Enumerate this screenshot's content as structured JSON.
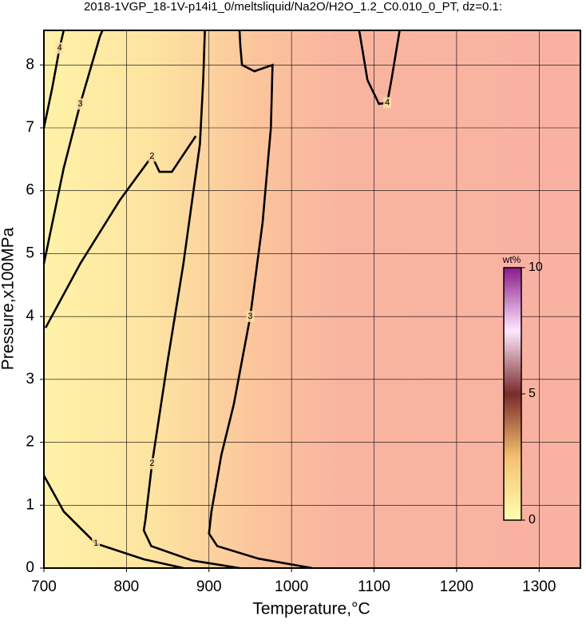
{
  "chart_data": {
    "type": "contour",
    "title": "2018-1VGP_18-1V-p14i1_0/meltsliquid/Na2O/H2O_1.2_C0.010_0_PT, dz=0.1:",
    "x_label": "Temperature,°C",
    "y_label": "Pressure,x100MPa",
    "xlim": [
      700,
      1350
    ],
    "xticks": [
      700,
      800,
      900,
      1000,
      1100,
      1200,
      1300
    ],
    "ylim": [
      0,
      8.55
    ],
    "yticks": [
      0,
      1,
      2,
      3,
      4,
      5,
      6,
      7,
      8
    ],
    "grid": true,
    "contours": [
      {
        "level": 3,
        "x": [
          1025,
          960,
          910,
          900,
          903,
          915,
          930,
          950,
          965,
          975,
          977,
          955,
          940,
          938,
          937
        ],
        "y": [
          0,
          0.15,
          0.35,
          0.55,
          0.9,
          1.8,
          2.6,
          4.0,
          5.5,
          7.0,
          8.0,
          7.9,
          8.0,
          8.3,
          8.55
        ]
      },
      {
        "level": 2,
        "x": [
          937,
          880,
          830,
          821,
          823,
          831,
          850,
          869,
          889,
          893,
          895
        ],
        "y": [
          0,
          0.12,
          0.35,
          0.6,
          0.77,
          1.66,
          3.3,
          4.84,
          6.74,
          7.76,
          8.55
        ]
      },
      {
        "level": 2,
        "x": [
          702,
          744,
          792,
          831,
          840,
          855,
          884
        ],
        "y": [
          3.82,
          4.84,
          5.85,
          6.55,
          6.3,
          6.3,
          6.87
        ]
      },
      {
        "level": 3,
        "x": [
          700,
          724,
          744,
          768,
          771
        ],
        "y": [
          4.84,
          6.36,
          7.38,
          8.46,
          8.55
        ]
      },
      {
        "level": 4,
        "x": [
          700,
          710,
          719,
          724
        ],
        "y": [
          7.0,
          7.63,
          8.27,
          8.55
        ]
      },
      {
        "level": 4,
        "x": [
          1082,
          1092,
          1106,
          1116,
          1121,
          1131
        ],
        "y": [
          8.55,
          7.76,
          7.38,
          7.4,
          7.76,
          8.55
        ]
      },
      {
        "level": 1,
        "x": [
          700,
          724,
          763,
          821,
          869
        ],
        "y": [
          1.47,
          0.9,
          0.39,
          0.14,
          0
        ]
      }
    ],
    "colorbar": {
      "label": "wt%",
      "lim": [
        0,
        10
      ],
      "ticks": [
        0,
        5,
        10
      ],
      "colors": [
        "#ffffb0",
        "#f5c070",
        "#7a2a2a",
        "#ffe8ff",
        "#8a1a8a"
      ]
    }
  }
}
